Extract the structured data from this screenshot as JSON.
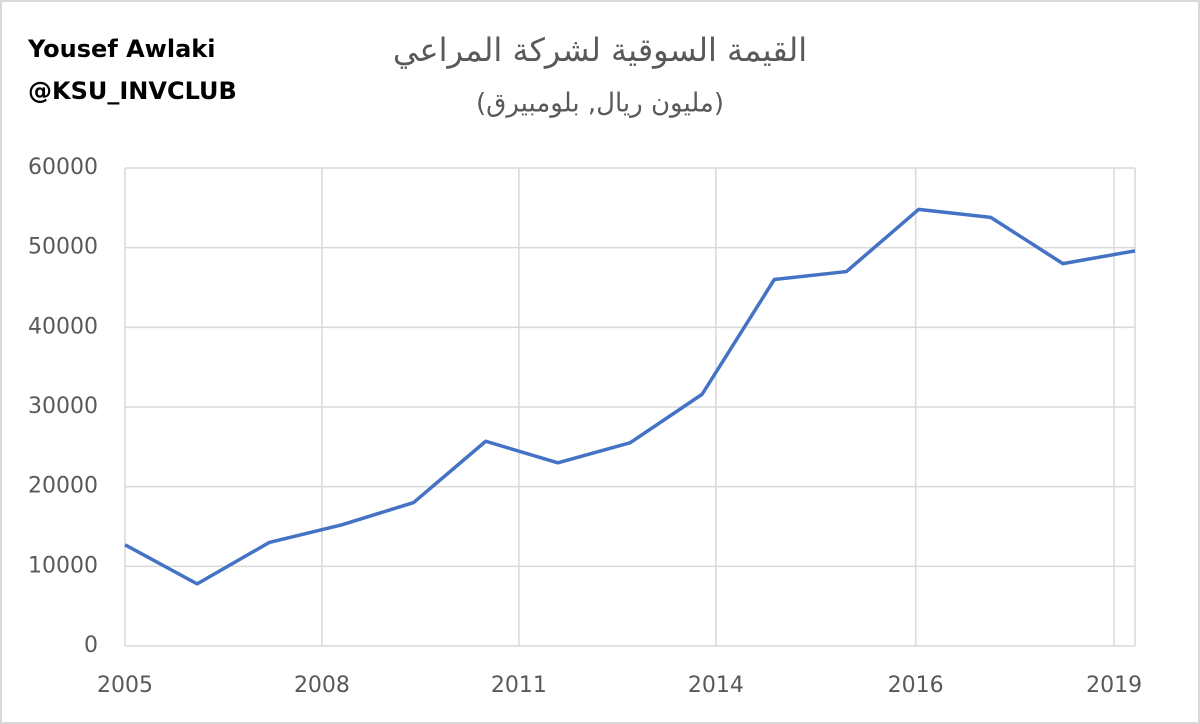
{
  "chart_data": {
    "type": "line",
    "title": "القيمة السوقية لشركة المراعي",
    "subtitle": "(مليون ريال, بلومبيرق)",
    "annotations": [
      "Yousef Awlaki",
      "@KSU_INVCLUB"
    ],
    "x": [
      0,
      1,
      2,
      3,
      4,
      5,
      6,
      7,
      8,
      9,
      10,
      11,
      12,
      13,
      14
    ],
    "series": [
      {
        "name": "Market value",
        "color": "#4472c4",
        "values": [
          12700,
          7800,
          13000,
          15200,
          18000,
          25700,
          23000,
          25500,
          31600,
          46000,
          47000,
          54800,
          53800,
          48000,
          49600
        ]
      }
    ],
    "xlim": [
      0,
      14
    ],
    "xticks": [
      {
        "value": 0,
        "label": "2005"
      },
      {
        "value": 2.73,
        "label": "2008"
      },
      {
        "value": 5.46,
        "label": "2011"
      },
      {
        "value": 8.19,
        "label": "2014"
      },
      {
        "value": 10.96,
        "label": "2016"
      },
      {
        "value": 13.71,
        "label": "2019"
      }
    ],
    "ylim": [
      0,
      60000
    ],
    "yticks": [
      0,
      10000,
      20000,
      30000,
      40000,
      50000,
      60000
    ],
    "grid": true
  }
}
